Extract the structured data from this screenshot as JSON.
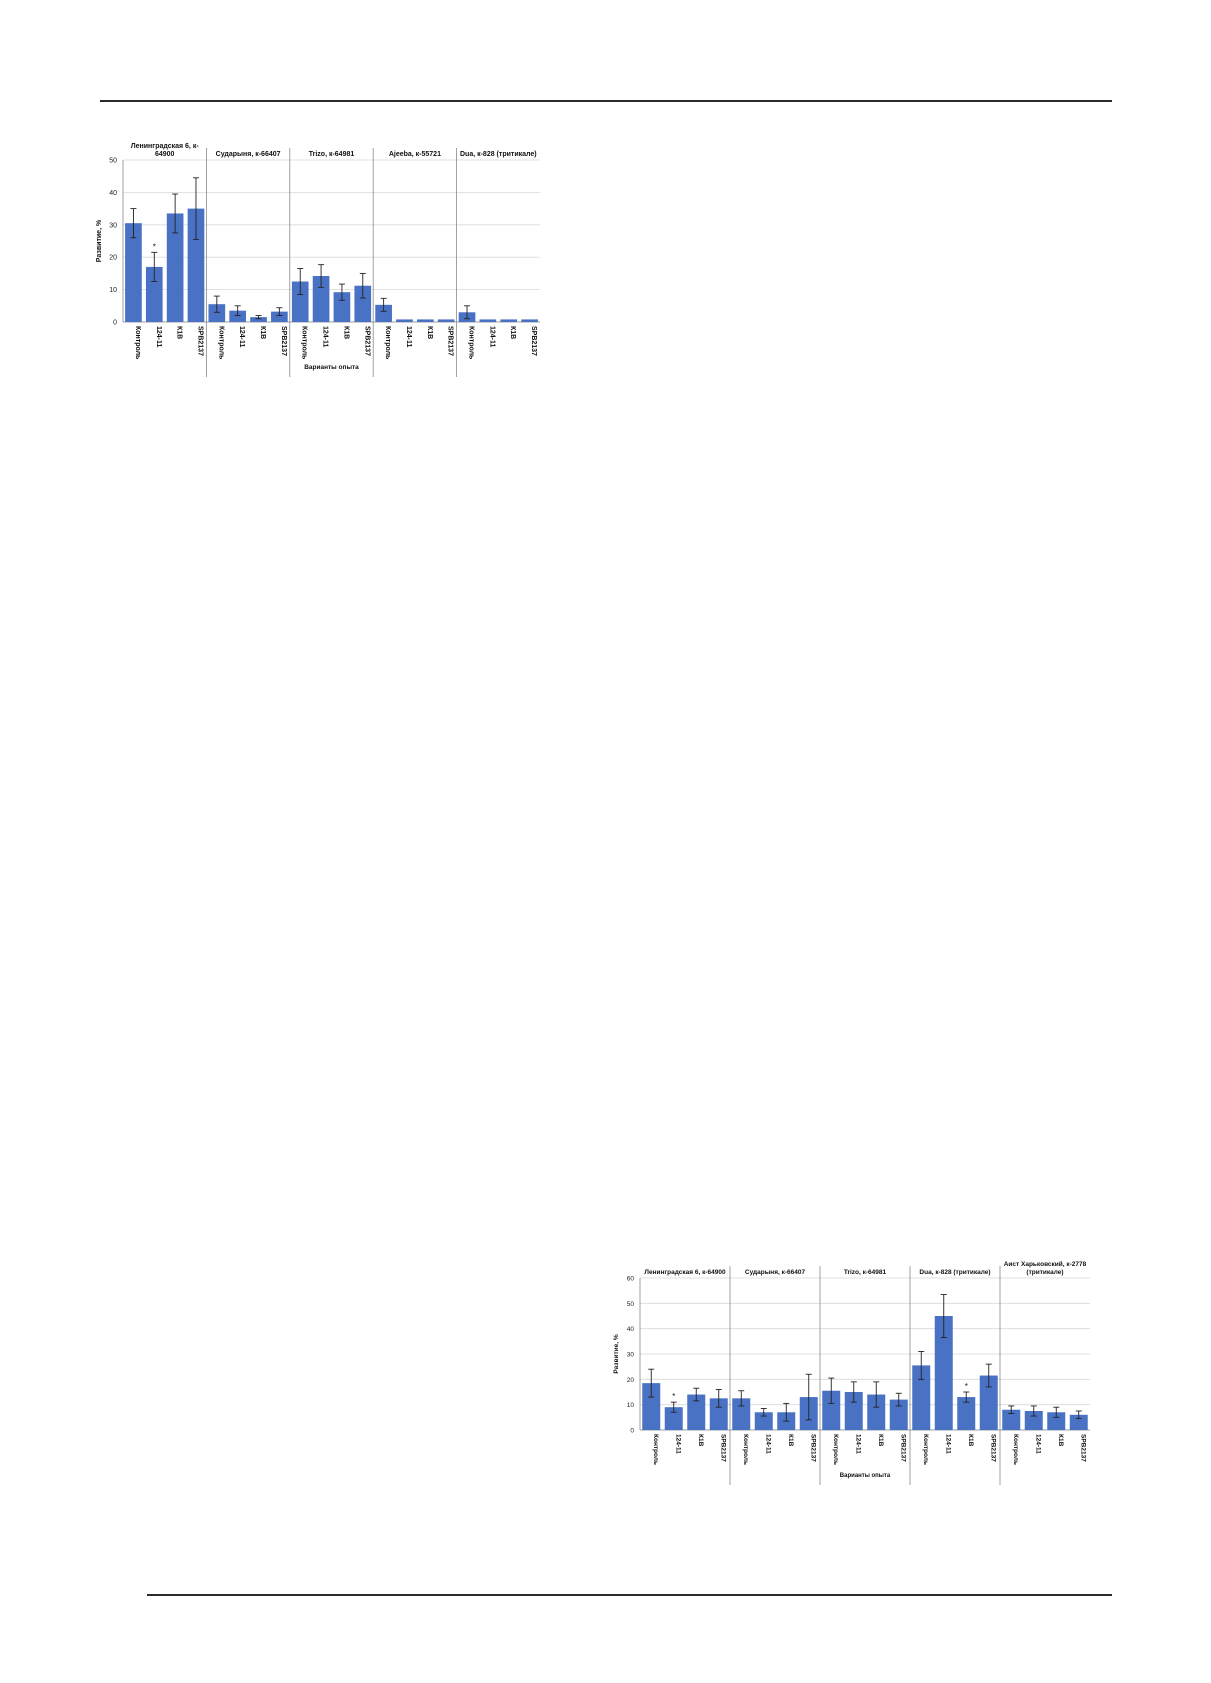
{
  "chart_data": [
    {
      "type": "bar",
      "ylabel": "Развитие, %",
      "xlabel": "Варианты опыта",
      "ylim": [
        0,
        50
      ],
      "yticks": [
        0,
        10,
        20,
        30,
        40,
        50
      ],
      "grid": true,
      "bar_color": "#4a72c4",
      "categories": [
        "Контроль",
        "124-11",
        "К1В",
        "SPB2137"
      ],
      "panels": [
        {
          "title_lines": [
            "Ленинградская 6, к-",
            "64900"
          ],
          "values": [
            30.5,
            17,
            33.5,
            35
          ],
          "errors": [
            4.5,
            4.5,
            6,
            9.5
          ],
          "marks": [
            "",
            "*",
            "",
            ""
          ]
        },
        {
          "title_lines": [
            "Сударыня, к-66407"
          ],
          "values": [
            5.5,
            3.5,
            1.5,
            3.2
          ],
          "errors": [
            2.5,
            1.5,
            0.5,
            1.2
          ],
          "marks": [
            "",
            "",
            "",
            ""
          ]
        },
        {
          "title_lines": [
            "Trizo, к-64981"
          ],
          "values": [
            12.5,
            14.2,
            9.2,
            11.2
          ],
          "errors": [
            4,
            3.5,
            2.5,
            3.8
          ],
          "marks": [
            "",
            "",
            "",
            ""
          ]
        },
        {
          "title_lines": [
            "Ajeeba, к-55721"
          ],
          "values": [
            5.3,
            0.8,
            0.8,
            0.8
          ],
          "errors": [
            2,
            0,
            0,
            0
          ],
          "marks": [
            "",
            "",
            "",
            ""
          ]
        },
        {
          "title_lines": [
            "Dua, к-828 (тритикале)"
          ],
          "values": [
            3,
            0.8,
            0.8,
            0.8
          ],
          "errors": [
            2,
            0,
            0,
            0
          ],
          "marks": [
            "",
            "",
            "",
            ""
          ]
        }
      ]
    },
    {
      "type": "bar",
      "ylabel": "Развитие, %",
      "xlabel": "Варианты опыта",
      "ylim": [
        0,
        60
      ],
      "yticks": [
        0,
        10,
        20,
        30,
        40,
        50,
        60
      ],
      "grid": true,
      "bar_color": "#4a72c4",
      "categories": [
        "Контроль",
        "124-11",
        "К1В",
        "SPB2137"
      ],
      "panels": [
        {
          "title_lines": [
            "Ленинградская 6, к-64900"
          ],
          "values": [
            18.5,
            9,
            14,
            12.5
          ],
          "errors": [
            5.5,
            2,
            2.5,
            3.5
          ],
          "marks": [
            "",
            "*",
            "",
            ""
          ]
        },
        {
          "title_lines": [
            "Сударыня, к-66407"
          ],
          "values": [
            12.5,
            7,
            7,
            13
          ],
          "errors": [
            3,
            1.5,
            3.5,
            9
          ],
          "marks": [
            "",
            "",
            "",
            ""
          ]
        },
        {
          "title_lines": [
            "Trizo, к-64981"
          ],
          "values": [
            15.5,
            15,
            14,
            12
          ],
          "errors": [
            5,
            4,
            5,
            2.5
          ],
          "marks": [
            "",
            "",
            "",
            ""
          ]
        },
        {
          "title_lines": [
            "Dua, к-828 (тритикале)"
          ],
          "values": [
            25.5,
            45,
            13,
            21.5
          ],
          "errors": [
            5.5,
            8.5,
            2,
            4.5
          ],
          "marks": [
            "",
            "",
            "*",
            ""
          ]
        },
        {
          "title_lines": [
            "Аист Харьковский, к-2778",
            "(тритикале)"
          ],
          "values": [
            8,
            7.5,
            7,
            6
          ],
          "errors": [
            1.5,
            2,
            2,
            1.5
          ],
          "marks": [
            "",
            "",
            "",
            ""
          ]
        }
      ]
    }
  ]
}
